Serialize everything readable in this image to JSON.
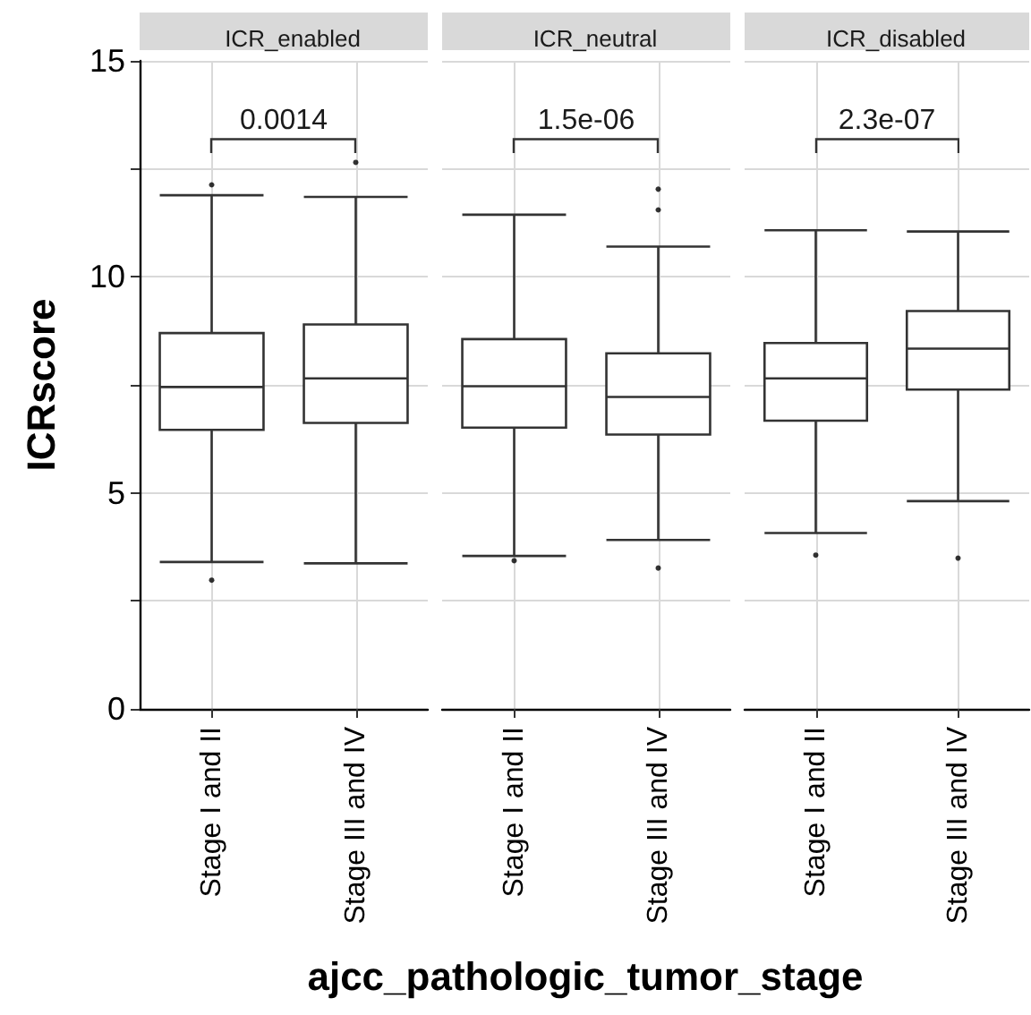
{
  "chart_data": [
    {
      "type": "box",
      "title": "ICR_enabled",
      "ylabel": "ICRscore",
      "categories": [
        "Stage I and II",
        "Stage III and IV"
      ],
      "annotations": [
        "0.0014"
      ],
      "ylim": [
        0,
        15
      ],
      "yticks": [
        0,
        {
          "value": 2.5,
          "label": null
        },
        5,
        {
          "value": 7.5,
          "label": null
        },
        10,
        {
          "value": 12.5,
          "label": null
        },
        15
      ],
      "grid": true,
      "series": [
        {
          "color": "#333333",
          "boxes": [
            {
              "low": 3.4,
              "q1": 6.46,
              "median": 7.45,
              "q3": 8.7,
              "high": 11.89,
              "outliers": [
                2.98,
                12.13
              ]
            },
            {
              "low": 3.37,
              "q1": 6.62,
              "median": 7.65,
              "q3": 8.9,
              "high": 11.85,
              "outliers": [
                12.65
              ]
            }
          ]
        }
      ]
    },
    {
      "type": "box",
      "title": "ICR_neutral",
      "xlabel": "ajcc_pathologic_tumor_stage",
      "categories": [
        "Stage I and II",
        "Stage III and IV"
      ],
      "annotations": [
        "1.5e-06"
      ],
      "ylim": [
        0,
        15
      ],
      "yticks": [
        0,
        {
          "value": 2.5,
          "label": null
        },
        5,
        {
          "value": 7.5,
          "label": null
        },
        10,
        {
          "value": 12.5,
          "label": null
        },
        15
      ],
      "grid": true,
      "tick_labels": "x",
      "series": [
        {
          "color": "#333333",
          "boxes": [
            {
              "low": 3.54,
              "q1": 6.51,
              "median": 7.47,
              "q3": 8.56,
              "high": 11.44,
              "outliers": [
                3.43
              ]
            },
            {
              "low": 3.91,
              "q1": 6.35,
              "median": 7.22,
              "q3": 8.23,
              "high": 10.7,
              "outliers": [
                3.26,
                11.55,
                12.03
              ]
            }
          ]
        }
      ]
    },
    {
      "type": "box",
      "title": "ICR_disabled",
      "categories": [
        "Stage I and II",
        "Stage III and IV"
      ],
      "annotations": [
        "2.3e-07"
      ],
      "ylim": [
        0,
        15
      ],
      "yticks": [
        0,
        {
          "value": 2.5,
          "label": null
        },
        5,
        {
          "value": 7.5,
          "label": null
        },
        10,
        {
          "value": 12.5,
          "label": null
        },
        15
      ],
      "grid": true,
      "tick_labels": "x",
      "series": [
        {
          "color": "#333333",
          "boxes": [
            {
              "low": 4.07,
              "q1": 6.67,
              "median": 7.65,
              "q3": 8.47,
              "high": 11.08,
              "outliers": [
                3.56
              ]
            },
            {
              "low": 4.81,
              "q1": 7.39,
              "median": 8.34,
              "q3": 9.21,
              "high": 11.05,
              "outliers": [
                3.49
              ]
            }
          ]
        }
      ]
    }
  ]
}
